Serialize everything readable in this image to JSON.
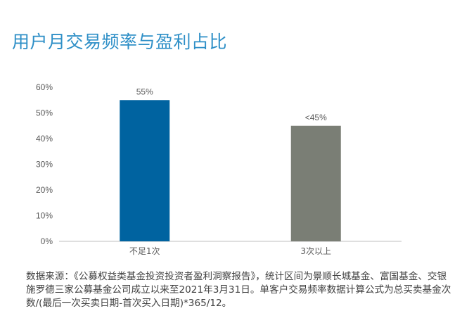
{
  "title": "用户月交易频率与盈利占比",
  "colors": {
    "title": "#2e8fc7",
    "axis_text": "#595959",
    "axis_line": "#bfbfbf",
    "note": "#404040"
  },
  "chart_data": {
    "type": "bar",
    "title": "",
    "xlabel": "",
    "ylabel": "",
    "categories": [
      "不足1次",
      "3次以上"
    ],
    "values": [
      55,
      45
    ],
    "value_labels": [
      "55%",
      "<45%"
    ],
    "colors": [
      "#0063a0",
      "#7a7e75"
    ],
    "ylim": [
      0,
      60
    ],
    "yticks": [
      0,
      10,
      20,
      30,
      40,
      50,
      60
    ],
    "ytick_labels": [
      "0%",
      "10%",
      "20%",
      "30%",
      "40%",
      "50%",
      "60%"
    ],
    "grid": false,
    "legend": "none"
  },
  "source_note": "数据来源：《公募权益类基金投资投资者盈利洞察报告》，统计区间为景顺长城基金、富国基金、交银施罗德三家公募基金公司成立以来至2021年3月31日。单客户交易频率数据计算公式为总买卖基金次数/(最后一次买卖日期-首次买入日期)*365/12。"
}
